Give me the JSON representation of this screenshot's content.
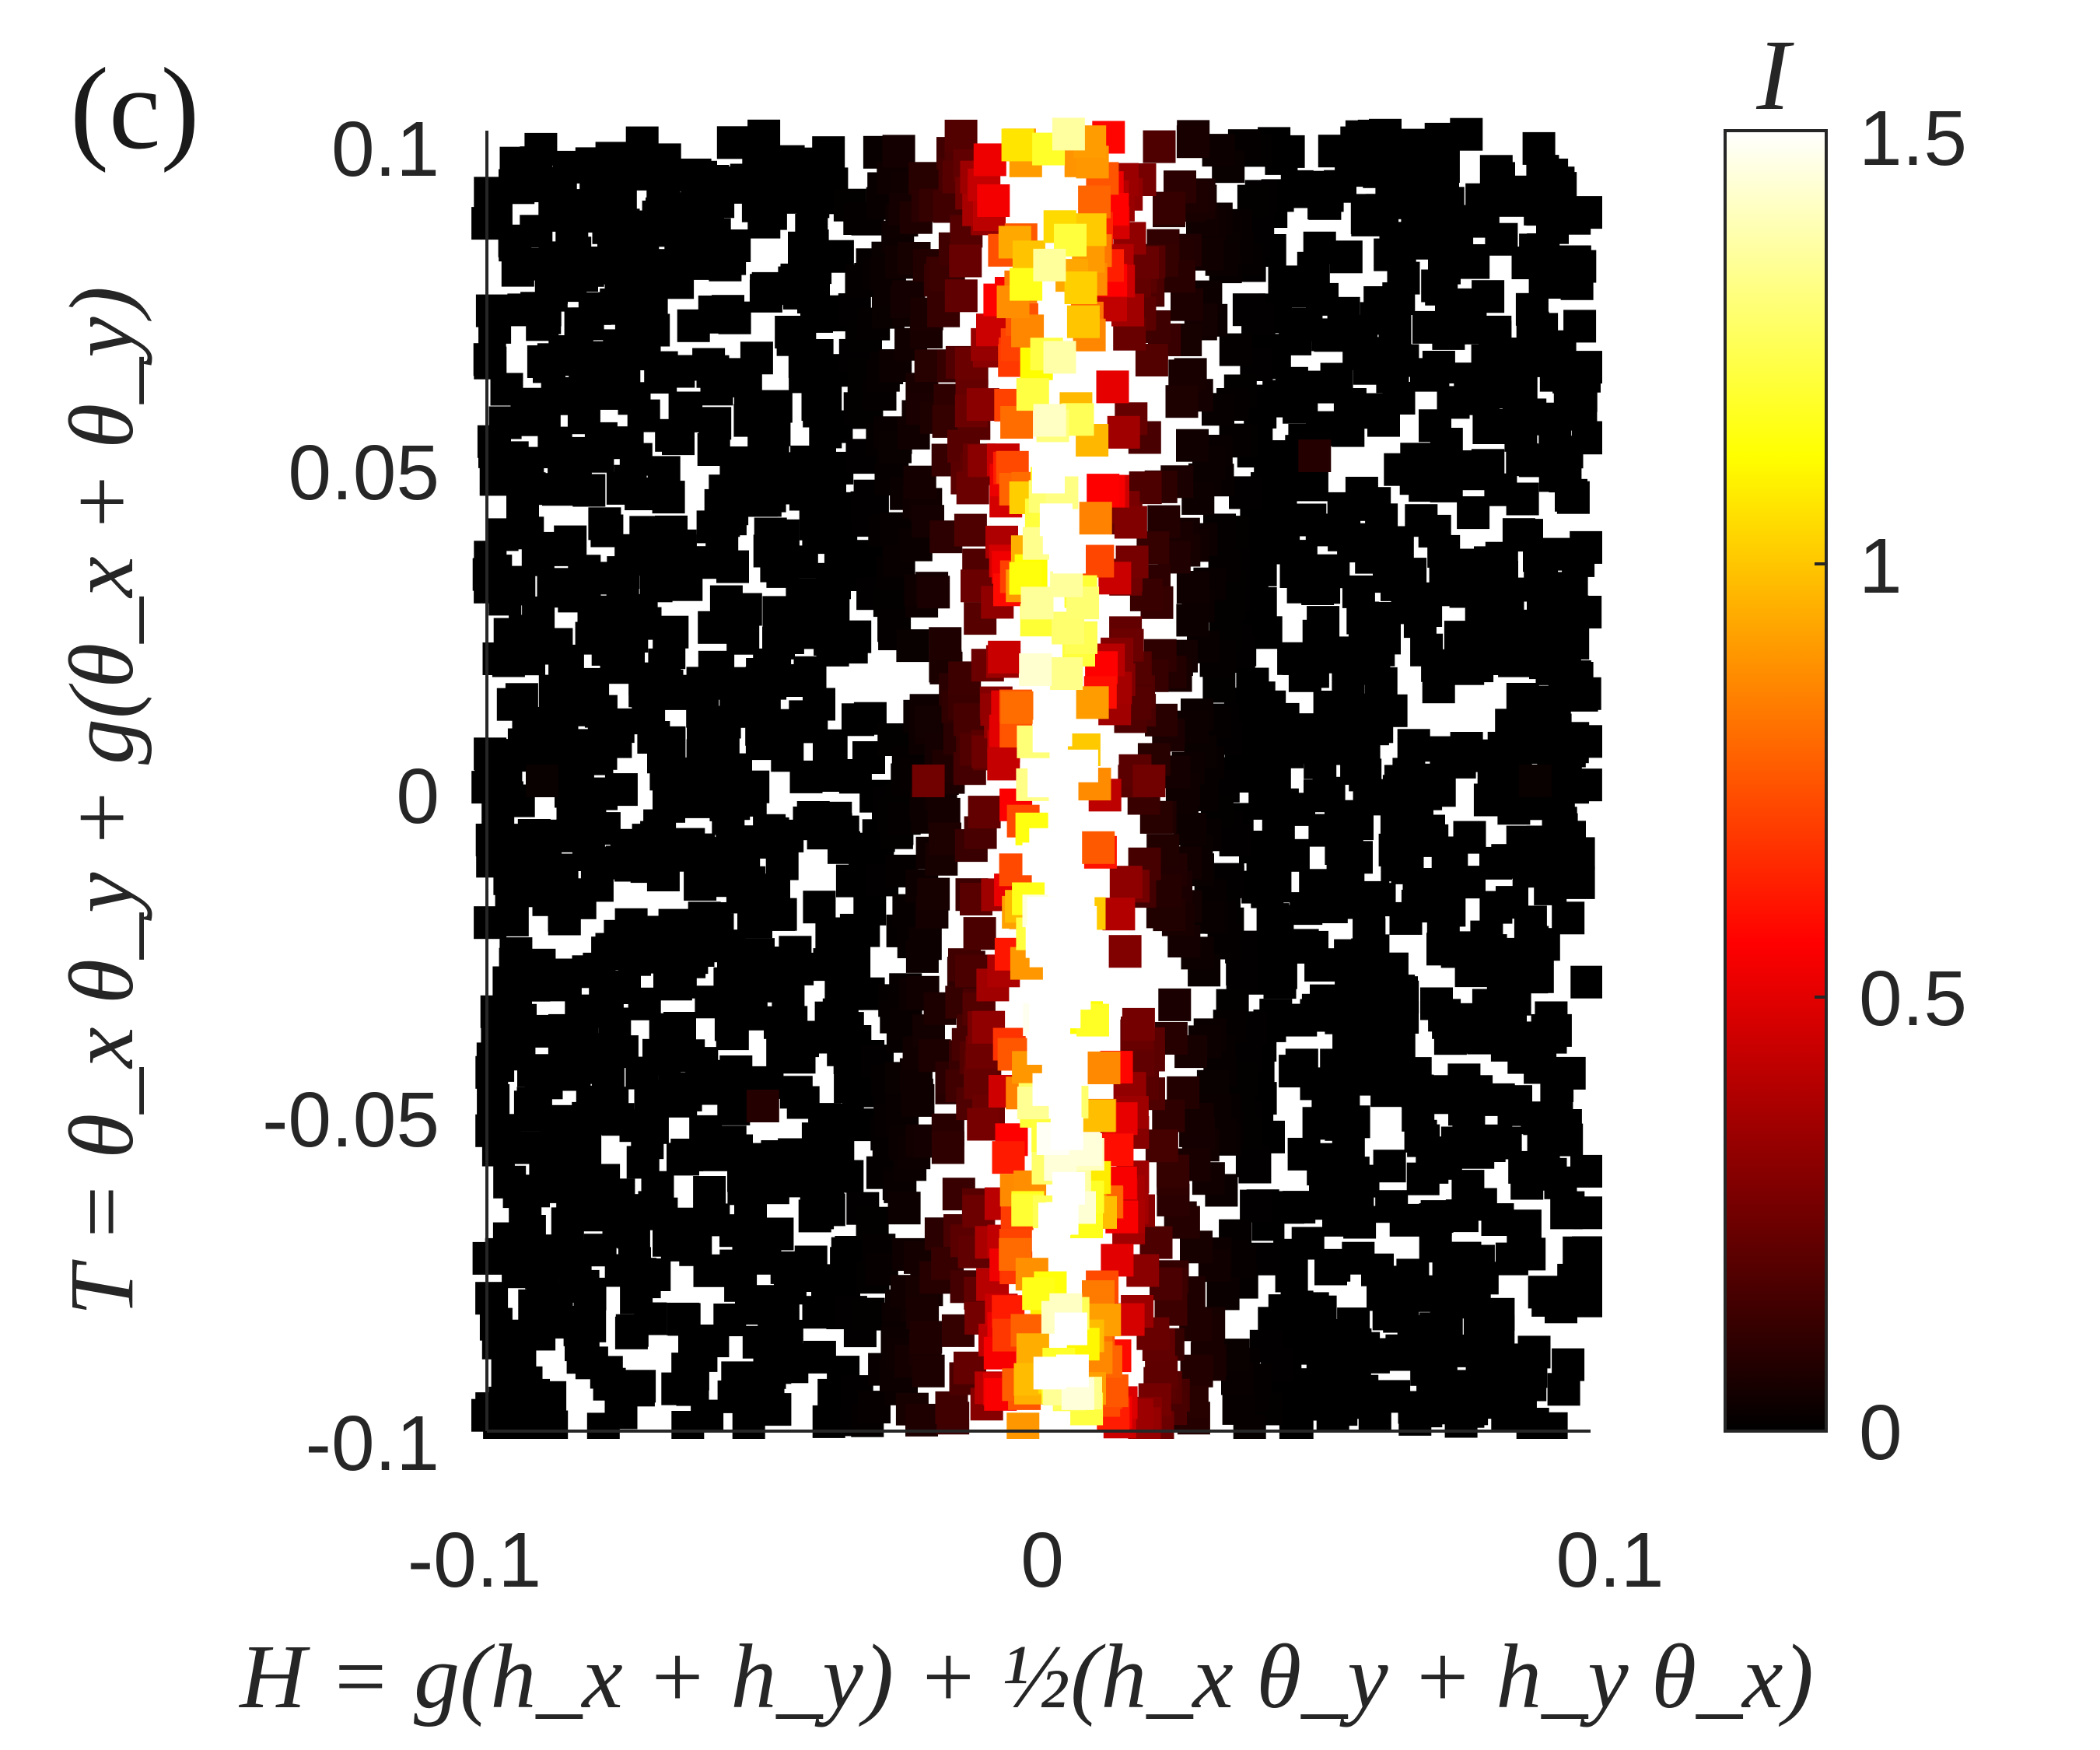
{
  "panel_label": "(c)",
  "chart_data": {
    "type": "scatter",
    "xlabel": "H = g(h_x + h_y) + ½(h_x θ_y + h_y θ_x)",
    "ylabel": "T = θ_x θ_y + g(θ_x + θ_y)",
    "xlim": [
      -0.1,
      0.1
    ],
    "ylim": [
      -0.1,
      0.1
    ],
    "x_ticks": [
      "-0.1",
      "0",
      "0.1"
    ],
    "y_ticks": [
      "0.1",
      "0.05",
      "0",
      "-0.05",
      "-0.1"
    ],
    "colorbar": {
      "label": "I",
      "range": [
        0,
        1.5
      ],
      "ticks": [
        "1.5",
        "1",
        "0.5",
        "0"
      ],
      "colormap": "hot",
      "colors": [
        "#000000",
        "#ff0000",
        "#ffff00",
        "#ffffff"
      ]
    },
    "marker": "square",
    "description_of_trend": "",
    "series": [
      {
        "sample_points": [
          {
            "x": 0.0,
            "y": -0.012,
            "I": 1.5
          },
          {
            "x": 0.0,
            "y": -0.02,
            "I": 1.45
          },
          {
            "x": -0.001,
            "y": 0.006,
            "I": 1.3
          },
          {
            "x": -0.002,
            "y": -0.066,
            "I": 1.2
          },
          {
            "x": -0.003,
            "y": 0.03,
            "I": 0.9
          },
          {
            "x": -0.002,
            "y": 0.045,
            "I": 0.8
          },
          {
            "x": -0.003,
            "y": -0.048,
            "I": 0.85
          },
          {
            "x": -0.005,
            "y": 0.075,
            "I": 0.55
          },
          {
            "x": -0.007,
            "y": -0.088,
            "I": 0.55
          },
          {
            "x": 0.02,
            "y": 0.0,
            "I": 0.25
          },
          {
            "x": -0.02,
            "y": 0.0,
            "I": 0.25
          },
          {
            "x": 0.05,
            "y": 0.05,
            "I": 0.08
          },
          {
            "x": -0.05,
            "y": -0.05,
            "I": 0.08
          },
          {
            "x": 0.09,
            "y": 0.0,
            "I": 0.02
          },
          {
            "x": -0.09,
            "y": 0.0,
            "I": 0.02
          }
        ]
      }
    ]
  }
}
